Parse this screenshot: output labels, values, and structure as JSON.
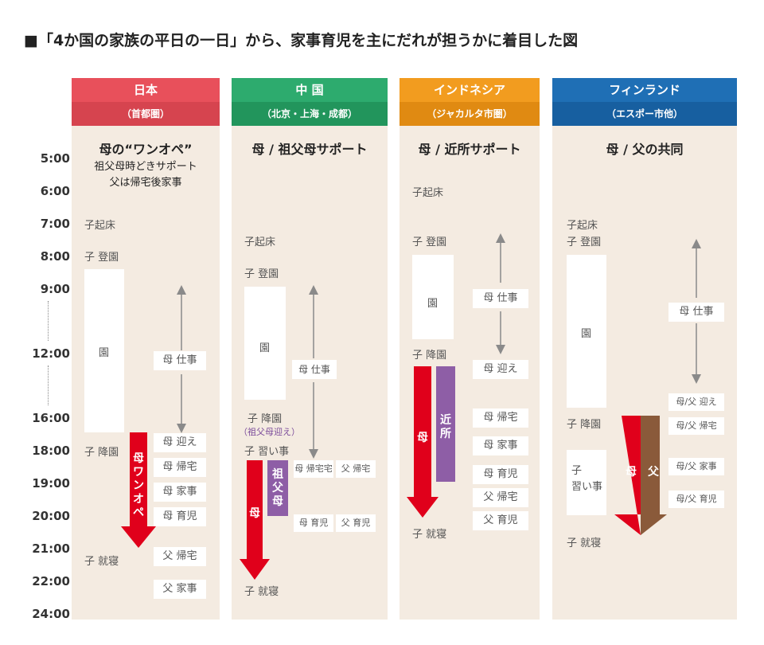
{
  "title": "■「4か国の家族の平日の一日」から、家事育児を主にだれが担うかに着目した図",
  "times": [
    "5:00",
    "6:00",
    "7:00",
    "8:00",
    "9:00",
    "12:00",
    "16:00",
    "18:00",
    "19:00",
    "20:00",
    "21:00",
    "22:00",
    "24:00"
  ],
  "colors": {
    "japan": "#e8505b",
    "china": "#2dab6e",
    "indonesia": "#f29c1f",
    "finland": "#1f6fb5",
    "red_arrow": "#e0001b",
    "purple": "#8e5ea6",
    "brown": "#8a5a3a",
    "background": "#f4ebe1"
  },
  "japan": {
    "name": "日本",
    "region": "（首都圏）",
    "summary": "母の“ワンオペ”",
    "note1": "祖父母時どきサポート",
    "note2": "父は帰宅後家事",
    "e1": "子起床",
    "e2": "子 登園",
    "kindergarten": "園",
    "e3": "子 降園",
    "e4": "子 就寝",
    "mom_work": "母 仕事",
    "mom_pickup": "母 迎え",
    "mom_home": "母 帰宅",
    "mom_chores": "母 家事",
    "mom_child": "母 育児",
    "dad_home": "父 帰宅",
    "dad_chores": "父 家事",
    "arrow_label": "母ワンオペ"
  },
  "china": {
    "name": "中 国",
    "region": "（北京・上海・成都）",
    "summary": "母 / 祖父母サポート",
    "e1": "子起床",
    "e2": "子 登園",
    "kindergarten": "園",
    "e3": "子 降園",
    "e3_note": "（祖父母迎え）",
    "e4": "子 習い事",
    "e5": "子 就寝",
    "mom_work": "母 仕事",
    "mom_home": "母 帰宅宅",
    "dad_home": "父 帰宅",
    "mom_child": "母 育児",
    "dad_child": "父 育児",
    "mom_label": "母",
    "gp_label": "祖父母"
  },
  "indonesia": {
    "name": "インドネシア",
    "region": "（ジャカルタ市圏）",
    "summary": "母 / 近所サポート",
    "e1": "子起床",
    "e2": "子 登園",
    "kindergarten": "園",
    "e3": "子 降園",
    "e4": "子 就寝",
    "mom_work": "母 仕事",
    "mom_pickup": "母 迎え",
    "mom_home": "母 帰宅",
    "mom_chores": "母 家事",
    "mom_child": "母 育児",
    "dad_home": "父 帰宅",
    "dad_child": "父 育児",
    "mom_label": "母",
    "neighbor_label": "近所"
  },
  "finland": {
    "name": "フィンランド",
    "region": "（エスポー市他）",
    "summary": "母 / 父の共同",
    "e1": "子起床",
    "e2": "子 登園",
    "kindergarten": "園",
    "e3": "子 降園",
    "lesson1": "子",
    "lesson2": "習い事",
    "e4": "子 就寝",
    "mom_work": "母 仕事",
    "pickup": "母/父 迎え",
    "home": "母/父 帰宅",
    "chores": "母/父 家事",
    "child": "母/父 育児",
    "mom_label": "母",
    "dad_label": "父"
  }
}
